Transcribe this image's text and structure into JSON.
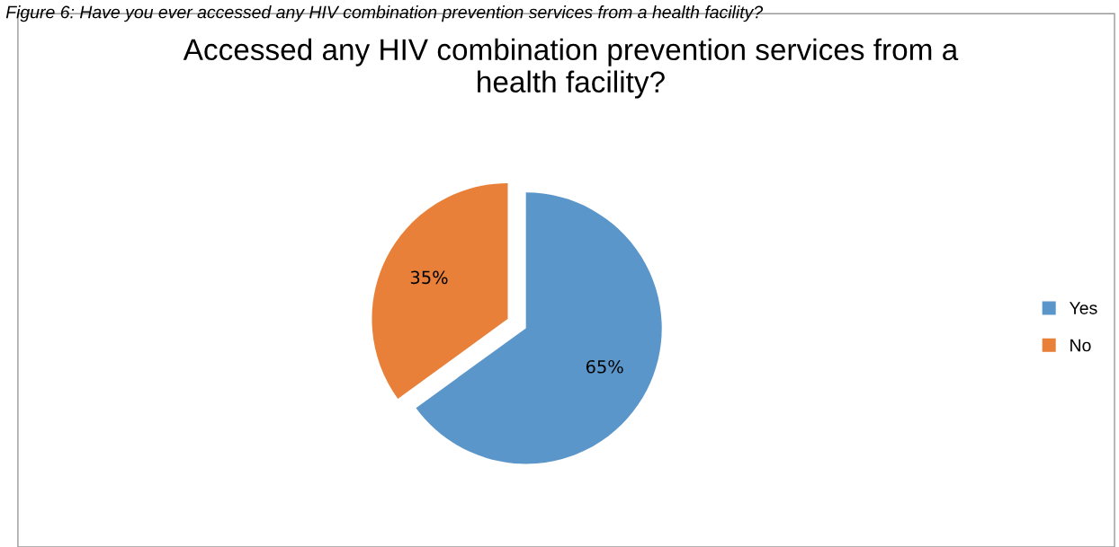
{
  "chart_data": {
    "type": "pie",
    "title": "Accessed any HIV combination prevention services from a health facility?",
    "annotations": [
      "Figure 6: Have you ever accessed any HIV combination prevention services from a health facility?"
    ],
    "categories": [
      "Yes",
      "No"
    ],
    "values": [
      65,
      35
    ],
    "colors": [
      "#5b96cb",
      "#e8803a"
    ],
    "value_labels": [
      "65%",
      "35%"
    ],
    "legend": "right"
  }
}
